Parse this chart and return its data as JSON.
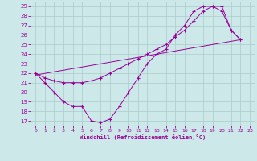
{
  "xlabel": "Windchill (Refroidissement éolien,°C)",
  "background_color": "#cce8e8",
  "line_color": "#990099",
  "xlim": [
    -0.5,
    23.5
  ],
  "ylim": [
    16.5,
    29.5
  ],
  "yticks": [
    17,
    18,
    19,
    20,
    21,
    22,
    23,
    24,
    25,
    26,
    27,
    28,
    29
  ],
  "xticks": [
    0,
    1,
    2,
    3,
    4,
    5,
    6,
    7,
    8,
    9,
    10,
    11,
    12,
    13,
    14,
    15,
    16,
    17,
    18,
    19,
    20,
    21,
    22,
    23
  ],
  "line1_x": [
    0,
    1,
    2,
    3,
    4,
    5,
    6,
    7,
    8,
    9,
    10,
    11,
    12,
    13,
    14,
    15,
    16,
    17,
    18,
    19,
    20,
    21,
    22
  ],
  "line1_y": [
    22,
    21,
    20,
    19,
    18.5,
    18.5,
    17,
    16.8,
    17.2,
    18.5,
    20,
    21.5,
    23.0,
    24.0,
    24.5,
    26.0,
    27.0,
    28.5,
    29.0,
    29.0,
    29.0,
    26.5,
    25.5
  ],
  "line2_x": [
    0,
    1,
    2,
    3,
    4,
    5,
    6,
    7,
    8,
    9,
    10,
    11,
    12,
    13,
    14,
    15,
    16,
    17,
    18,
    19,
    20,
    21,
    22
  ],
  "line2_y": [
    22,
    21.5,
    21.2,
    21.0,
    21.0,
    21.0,
    21.2,
    21.5,
    22.0,
    22.5,
    23.0,
    23.5,
    24.0,
    24.5,
    25.0,
    25.8,
    26.5,
    27.5,
    28.5,
    29.0,
    28.5,
    26.5,
    25.5
  ],
  "line3_x": [
    0,
    22
  ],
  "line3_y": [
    21.8,
    25.5
  ],
  "grid_color": "#aacccc",
  "marker": "+"
}
